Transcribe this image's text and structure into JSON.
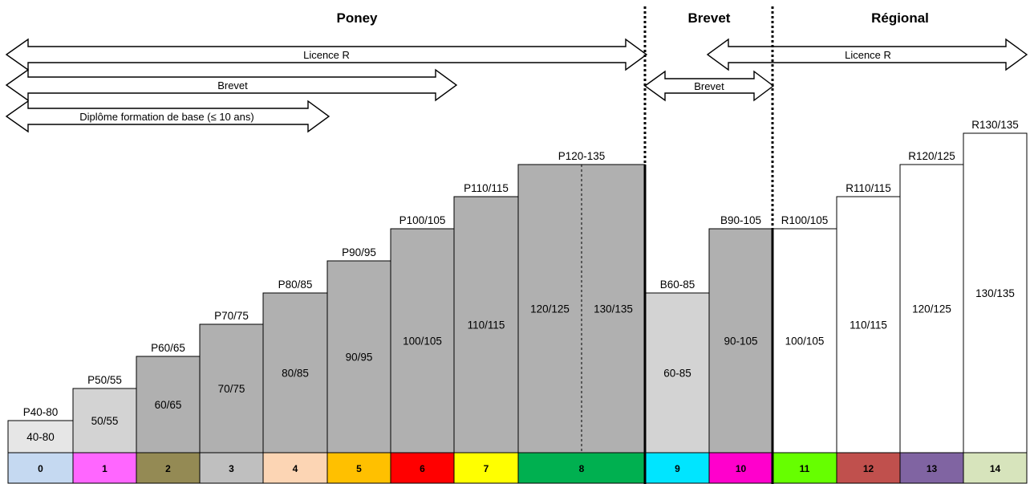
{
  "headers": {
    "poney": "Poney",
    "brevet": "Brevet",
    "regional": "Régional"
  },
  "arrows": {
    "licence_r_poney": "Licence R",
    "brevet_poney": "Brevet",
    "diplome": "Diplôme formation de base (≤ 10 ans)",
    "brevet_b": "Brevet",
    "licence_r_regional": "Licence R"
  },
  "steps": [
    {
      "top": "P40-80",
      "inner": "40-80",
      "level": "0",
      "level_color": "#c5d9f1",
      "fill": "#e6e6e6"
    },
    {
      "top": "P50/55",
      "inner": "50/55",
      "level": "1",
      "level_color": "#ff66ff",
      "fill": "#d3d3d3"
    },
    {
      "top": "P60/65",
      "inner": "60/65",
      "level": "2",
      "level_color": "#948a54",
      "fill": "#b0b0b0"
    },
    {
      "top": "P70/75",
      "inner": "70/75",
      "level": "3",
      "level_color": "#bfbfbf",
      "fill": "#b0b0b0"
    },
    {
      "top": "P80/85",
      "inner": "80/85",
      "level": "4",
      "level_color": "#fcd5b4",
      "fill": "#b0b0b0"
    },
    {
      "top": "P90/95",
      "inner": "90/95",
      "level": "5",
      "level_color": "#ffc000",
      "fill": "#b0b0b0"
    },
    {
      "top": "P100/105",
      "inner": "100/105",
      "level": "6",
      "level_color": "#ff0000",
      "fill": "#b0b0b0"
    },
    {
      "top": "P110/115",
      "inner": "110/115",
      "level": "7",
      "level_color": "#ffff00",
      "fill": "#b0b0b0"
    },
    {
      "top": "P120-135",
      "inner": "120/125",
      "inner2": "130/135",
      "level": "8",
      "level_color": "#00b050",
      "fill": "#b0b0b0"
    },
    {
      "top": "B60-85",
      "inner": "60-85",
      "level": "9",
      "level_color": "#00e5ff",
      "fill": "#d3d3d3"
    },
    {
      "top": "B90-105",
      "inner": "90-105",
      "level": "10",
      "level_color": "#ff00cc",
      "fill": "#b0b0b0"
    },
    {
      "top": "R100/105",
      "inner": "100/105",
      "level": "11",
      "level_color": "#66ff00",
      "fill": "#ffffff"
    },
    {
      "top": "R110/115",
      "inner": "110/115",
      "level": "12",
      "level_color": "#c0504d",
      "fill": "#ffffff"
    },
    {
      "top": "R120/125",
      "inner": "120/125",
      "level": "13",
      "level_color": "#8064a2",
      "fill": "#ffffff"
    },
    {
      "top": "R130/135",
      "inner": "130/135",
      "level": "14",
      "level_color": "#d7e4bc",
      "fill": "#ffffff"
    }
  ]
}
